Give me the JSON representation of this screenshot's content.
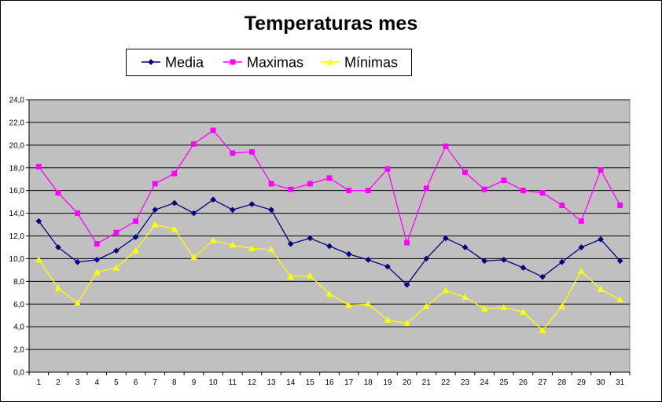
{
  "chart_data": {
    "type": "line",
    "title": "Temperaturas mes",
    "xlabel": "",
    "ylabel": "",
    "ylim": [
      0,
      24
    ],
    "y_tick_step": 2,
    "y_tick_format": "decimal-comma-1",
    "grid": true,
    "legend_position": "top",
    "plot_background": "#C0C0C0",
    "categories": [
      "1",
      "2",
      "3",
      "4",
      "5",
      "6",
      "7",
      "8",
      "9",
      "10",
      "11",
      "12",
      "13",
      "14",
      "15",
      "16",
      "17",
      "18",
      "19",
      "20",
      "21",
      "22",
      "23",
      "24",
      "25",
      "26",
      "27",
      "28",
      "29",
      "30",
      "31"
    ],
    "series": [
      {
        "name": "Media",
        "color": "#000080",
        "marker": "diamond",
        "values": [
          13.3,
          11.0,
          9.7,
          9.9,
          10.7,
          11.9,
          14.3,
          14.9,
          14.0,
          15.2,
          14.3,
          14.8,
          14.3,
          11.3,
          11.8,
          11.1,
          10.4,
          9.9,
          9.3,
          7.7,
          10.0,
          11.8,
          11.0,
          9.8,
          9.9,
          9.2,
          8.4,
          9.7,
          11.0,
          11.7,
          9.8
        ]
      },
      {
        "name": "Maximas",
        "color": "#FF00FF",
        "marker": "square",
        "values": [
          18.1,
          15.8,
          14.0,
          11.3,
          12.3,
          13.3,
          16.6,
          17.5,
          20.1,
          21.3,
          19.3,
          19.4,
          16.6,
          16.1,
          16.6,
          17.1,
          16.0,
          16.0,
          17.9,
          11.4,
          16.2,
          19.9,
          17.6,
          16.1,
          16.9,
          16.0,
          15.8,
          14.7,
          13.3,
          17.8,
          14.7
        ]
      },
      {
        "name": "Mínimas",
        "color": "#FFFF00",
        "marker": "triangle",
        "values": [
          9.9,
          7.4,
          6.1,
          8.8,
          9.2,
          10.7,
          13.0,
          12.6,
          10.1,
          11.6,
          11.2,
          10.9,
          10.8,
          8.4,
          8.5,
          6.9,
          5.9,
          6.0,
          4.6,
          4.3,
          5.8,
          7.2,
          6.6,
          5.6,
          5.7,
          5.3,
          3.7,
          5.8,
          8.9,
          7.3,
          6.4
        ]
      }
    ]
  }
}
